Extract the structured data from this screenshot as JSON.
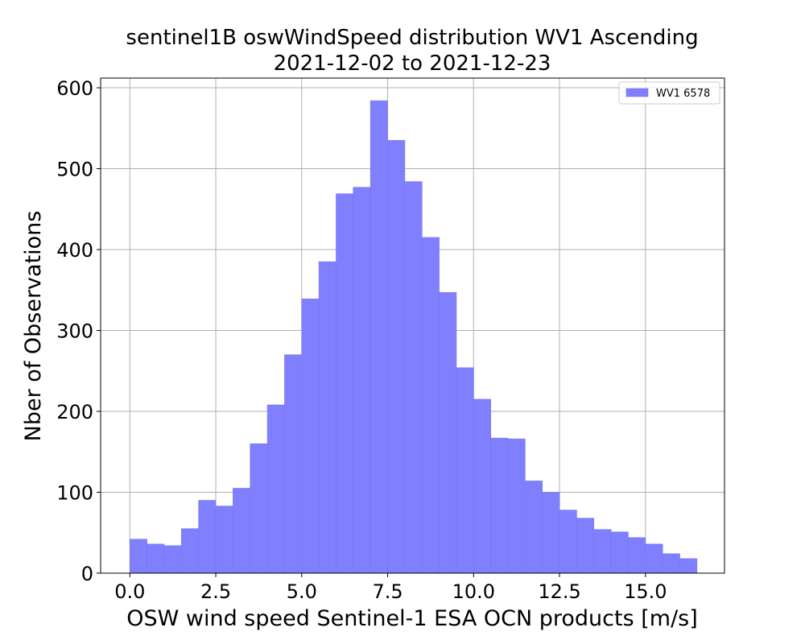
{
  "chart_data": {
    "type": "bar",
    "title_line1": "sentinel1B oswWindSpeed distribution WV1 Ascending",
    "title_line2": "2021-12-02 to 2021-12-23",
    "xlabel": "OSW wind speed Sentinel-1 ESA OCN products [m/s]",
    "ylabel": "Nber of Observations",
    "xlim": [
      -0.85,
      17.3
    ],
    "ylim": [
      0,
      612
    ],
    "xticks": [
      0,
      2.5,
      5,
      7.5,
      10,
      12.5,
      15
    ],
    "xtick_labels": [
      "0.0",
      "2.5",
      "5.0",
      "7.5",
      "10.0",
      "12.5",
      "15.0"
    ],
    "yticks": [
      0,
      100,
      200,
      300,
      400,
      500,
      600
    ],
    "ytick_labels": [
      "0",
      "100",
      "200",
      "300",
      "400",
      "500",
      "600"
    ],
    "grid": true,
    "legend_position": "top-right",
    "bar_color": "#8080ff",
    "bar_edge_color": "#7676ee",
    "series": [
      {
        "name": "WV1 6578",
        "bin_width": 0.5,
        "bin_starts": [
          0,
          0.5,
          1,
          1.5,
          2,
          2.5,
          3,
          3.5,
          4,
          4.5,
          5,
          5.5,
          6,
          6.5,
          7,
          7.5,
          8,
          8.5,
          9,
          9.5,
          10,
          10.5,
          11,
          11.5,
          12,
          12.5,
          13,
          13.5,
          14,
          14.5,
          15,
          15.5,
          16
        ],
        "values": [
          42,
          36,
          34,
          55,
          90,
          83,
          105,
          160,
          208,
          270,
          339,
          385,
          469,
          477,
          584,
          535,
          484,
          415,
          347,
          254,
          215,
          167,
          166,
          114,
          100,
          78,
          68,
          54,
          51,
          44,
          36,
          24,
          18
        ]
      }
    ]
  }
}
